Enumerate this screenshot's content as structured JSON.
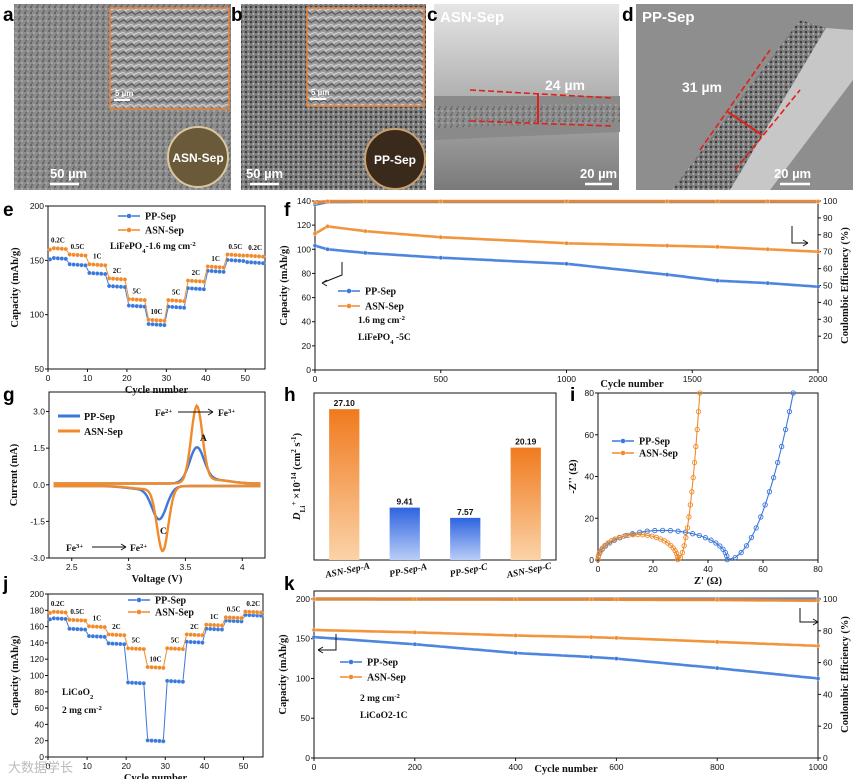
{
  "colors": {
    "pp": "#3b78dc",
    "asn": "#f08a2a",
    "axis": "#111111",
    "inset_border": "#e8823a",
    "scale_line": "#ffffff",
    "measure_red": "#e0201a"
  },
  "panel_letters": [
    "a",
    "b",
    "c",
    "d",
    "e",
    "f",
    "g",
    "h",
    "i",
    "j",
    "k"
  ],
  "sem": {
    "a": {
      "scale": "50 µm",
      "inset_scale": "5 µm",
      "badge": "ASN-Sep"
    },
    "b": {
      "scale": "50 µm",
      "inset_scale": "5 µm",
      "badge": "PP-Sep"
    },
    "c": {
      "title": "ASN-Sep",
      "thickness": "24 µm",
      "scale": "20 µm"
    },
    "d": {
      "title": "PP-Sep",
      "thickness": "31 µm",
      "scale": "20 µm"
    }
  },
  "watermark": "大数据学长",
  "chart_data": [
    {
      "id": "e",
      "type": "scatter",
      "title": "",
      "xlabel": "Cycle number",
      "ylabel": "Capacity (mAh/g)",
      "xlim": [
        0,
        55
      ],
      "ylim": [
        50,
        200
      ],
      "xticks": [
        0,
        10,
        20,
        30,
        40,
        50
      ],
      "yticks": [
        50,
        100,
        150,
        200
      ],
      "legend": [
        "PP-Sep",
        "ASN-Sep"
      ],
      "annotation": "LiFePO4-1.6 mg cm-2",
      "rate_labels": [
        "0.2C",
        "0.5C",
        "1C",
        "2C",
        "5C",
        "10C",
        "5C",
        "2C",
        "1C",
        "0.5C",
        "0.2C"
      ],
      "segments": [
        "0-5",
        "5-10",
        "10-15",
        "15-20",
        "20-25",
        "25-30",
        "30-35",
        "35-40",
        "40-45",
        "45-50",
        "50-55"
      ],
      "series": [
        {
          "name": "PP-Sep",
          "values": [
            152,
            146,
            138,
            126,
            108,
            91,
            107,
            124,
            140,
            150,
            148
          ]
        },
        {
          "name": "ASN-Sep",
          "values": [
            161,
            155,
            146,
            133,
            114,
            95,
            113,
            131,
            144,
            155,
            154
          ]
        }
      ]
    },
    {
      "id": "f",
      "type": "line",
      "xlabel": "Cycle number",
      "ylabel": "Capacity (mAh/g)",
      "y2label": "Coulombic Efficiency (%)",
      "xlim": [
        0,
        2000
      ],
      "ylim": [
        0,
        140
      ],
      "y2lim": [
        0,
        100
      ],
      "xticks": [
        0,
        500,
        1000,
        1500,
        2000
      ],
      "yticks": [
        0,
        20,
        40,
        60,
        80,
        100,
        120,
        140
      ],
      "y2ticks": [
        20,
        30,
        40,
        50,
        60,
        70,
        80,
        90,
        100
      ],
      "legend": [
        "PP-Sep",
        "ASN-Sep"
      ],
      "annotation_line1": "1.6 mg cm-2",
      "annotation_line2": "LiFePO4 -5C",
      "x": [
        0,
        50,
        200,
        500,
        1000,
        1400,
        1600,
        1800,
        2000
      ],
      "series": [
        {
          "name": "PP-Sep capacity",
          "values": [
            103,
            100,
            97,
            93,
            88,
            79,
            74,
            72,
            69
          ]
        },
        {
          "name": "ASN-Sep capacity",
          "values": [
            113,
            119,
            115,
            110,
            105,
            103,
            102,
            100,
            98
          ]
        },
        {
          "name": "PP-Sep CE",
          "values": [
            98,
            99.5,
            99.6,
            99.6,
            99.6,
            99.6,
            99.6,
            99.6,
            99.6
          ]
        },
        {
          "name": "ASN-Sep CE",
          "values": [
            99,
            99.8,
            99.8,
            99.8,
            99.8,
            99.8,
            99.8,
            99.8,
            99.8
          ]
        }
      ]
    },
    {
      "id": "g",
      "type": "line",
      "xlabel": "Voltage (V)",
      "ylabel": "Current (mA)",
      "xlim": [
        2.3,
        4.2
      ],
      "ylim": [
        -3.0,
        3.8
      ],
      "xticks": [
        2.5,
        3.0,
        3.5,
        4.0
      ],
      "yticks": [
        -3.0,
        -1.5,
        0.0,
        1.5,
        3.0
      ],
      "legend": [
        "PP-Sep",
        "ASN-Sep"
      ],
      "annotations": [
        "Fe2+",
        "Fe3+",
        "A",
        "C",
        "Fe3+",
        "Fe2+"
      ],
      "series": [
        {
          "name": "PP-Sep",
          "anodic_peak": [
            3.6,
            1.4
          ],
          "cathodic_peak": [
            3.27,
            -1.3
          ]
        },
        {
          "name": "ASN-Sep",
          "anodic_peak": [
            3.6,
            3.1
          ],
          "cathodic_peak": [
            3.3,
            -2.6
          ]
        }
      ]
    },
    {
      "id": "h",
      "type": "bar",
      "ylabel": "DLi+ ×10-14 (cm2 s-1)",
      "categories": [
        "ASN-Sep-A",
        "PP-Sep-A",
        "PP-Sep-C",
        "ASN-Sep-C"
      ],
      "values": [
        27.1,
        9.41,
        7.57,
        20.19
      ],
      "value_labels": [
        "27.10",
        "9.41",
        "7.57",
        "20.19"
      ],
      "ylim": [
        0,
        30
      ]
    },
    {
      "id": "i",
      "type": "scatter",
      "xlabel": "Z' (Ω)",
      "ylabel": "-Z'' (Ω)",
      "xlim": [
        0,
        80
      ],
      "ylim": [
        0,
        80
      ],
      "xticks": [
        0,
        20,
        40,
        60,
        80
      ],
      "yticks": [
        0,
        20,
        40,
        60,
        80
      ],
      "legend": [
        "PP-Sep",
        "ASN-Sep"
      ],
      "series": [
        {
          "name": "PP-Sep",
          "semicircle_end": 47,
          "peak": 14,
          "tail_end": [
            71,
            80
          ]
        },
        {
          "name": "ASN-Sep",
          "semicircle_end": 29,
          "peak": 12,
          "tail_end": [
            37,
            80
          ]
        }
      ]
    },
    {
      "id": "j",
      "type": "scatter",
      "xlabel": "Cycle number",
      "ylabel": "Capacity (mAh/g)",
      "xlim": [
        0,
        55
      ],
      "ylim": [
        0,
        200
      ],
      "xticks": [
        0,
        10,
        20,
        30,
        40,
        50
      ],
      "yticks": [
        0,
        20,
        40,
        60,
        80,
        100,
        120,
        140,
        160,
        180,
        200
      ],
      "legend": [
        "PP-Sep",
        "ASN-Sep"
      ],
      "annotation_line1": "LiCoO2",
      "annotation_line2": "2 mg cm-2",
      "rate_labels": [
        "0.2C",
        "0.5C",
        "1C",
        "2C",
        "5C",
        "10C",
        "5C",
        "2C",
        "1C",
        "0.5C",
        "0.2C"
      ],
      "segments": [
        "0-5",
        "5-10",
        "10-15",
        "15-20",
        "20-25",
        "25-30",
        "30-35",
        "35-40",
        "40-45",
        "45-50",
        "50-55"
      ],
      "series": [
        {
          "name": "PP-Sep",
          "values": [
            170,
            157,
            148,
            139,
            91,
            20,
            93,
            141,
            157,
            167,
            174
          ]
        },
        {
          "name": "ASN-Sep",
          "values": [
            178,
            168,
            160,
            150,
            133,
            110,
            133,
            150,
            162,
            171,
            178
          ]
        }
      ]
    },
    {
      "id": "k",
      "type": "line",
      "xlabel": "Cycle number",
      "ylabel": "Capacity (mAh/g)",
      "y2label": "Coulombic Efficiency (%)",
      "xlim": [
        0,
        1000
      ],
      "ylim": [
        0,
        210
      ],
      "y2lim": [
        0,
        105
      ],
      "xticks": [
        0,
        200,
        400,
        600,
        800,
        1000
      ],
      "yticks": [
        0,
        50,
        100,
        150,
        200
      ],
      "y2ticks": [
        0,
        20,
        40,
        60,
        80,
        100
      ],
      "legend": [
        "PP-Sep",
        "ASN-Sep"
      ],
      "annotation_line1": "2 mg cm-2",
      "annotation_line2": "LiCoO2-1C",
      "x": [
        0,
        200,
        400,
        550,
        600,
        800,
        1000
      ],
      "series": [
        {
          "name": "PP-Sep capacity",
          "values": [
            152,
            143,
            132,
            127,
            125,
            113,
            100
          ]
        },
        {
          "name": "ASN-Sep capacity",
          "values": [
            161,
            158,
            154,
            152,
            151,
            146,
            141
          ]
        },
        {
          "name": "PP-Sep CE",
          "values": [
            100,
            100,
            100,
            100,
            100,
            100,
            100
          ]
        },
        {
          "name": "ASN-Sep CE",
          "values": [
            100,
            99.9,
            99.8,
            99.8,
            99.7,
            99.5,
            99
          ]
        }
      ]
    }
  ]
}
